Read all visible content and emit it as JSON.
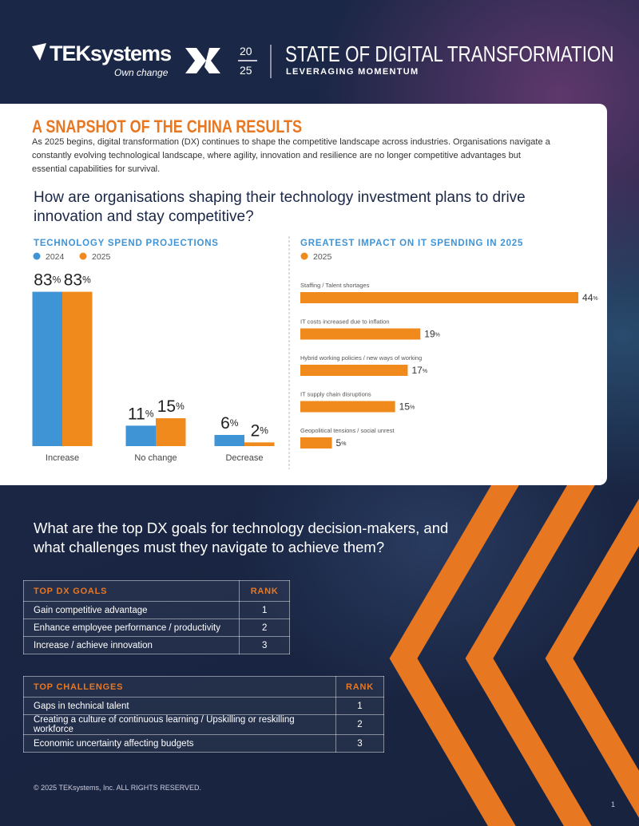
{
  "header": {
    "logo": "TEKsystems",
    "tagline": "Own change",
    "dx": "DX",
    "year_top": "20",
    "year_bottom": "25",
    "title": "STATE OF DIGITAL TRANSFORMATION",
    "subtitle": "LEVERAGING MOMENTUM"
  },
  "snapshot": {
    "title": "A SNAPSHOT OF THE CHINA RESULTS",
    "body": "As 2025 begins, digital transformation (DX) continues to shape the competitive landscape across industries. Organisations navigate a constantly evolving technological landscape, where agility, innovation and resilience are no longer competitive advantages but essential capabilities for survival.",
    "question": "How are organisations shaping their technology investment plans to drive innovation and stay competitive?"
  },
  "chart_data": [
    {
      "type": "bar",
      "title": "TECHNOLOGY SPEND PROJECTIONS",
      "categories": [
        "Increase",
        "No change",
        "Decrease"
      ],
      "series": [
        {
          "name": "2024",
          "color": "#3f94d6",
          "values": [
            83,
            11,
            6
          ],
          "value_labels": [
            "83%",
            "11%",
            "6%"
          ]
        },
        {
          "name": "2025",
          "color": "#f08a1c",
          "values": [
            83,
            15,
            2
          ],
          "value_labels": [
            "83%",
            "15%",
            "2%"
          ]
        }
      ]
    },
    {
      "type": "barh",
      "title": "GREATEST IMPACT ON IT SPENDING IN 2025",
      "categories": [
        "Staffing / Talent shortages",
        "IT costs increased due to inflation",
        "Hybrid working policies / new ways of working",
        "IT supply chain disruptions",
        "Geopolitical tensions / social unrest"
      ],
      "series": [
        {
          "name": "2025",
          "color": "#f08a1c",
          "values": [
            44,
            19,
            17,
            15,
            5
          ],
          "value_labels": [
            "44%",
            "19%",
            "17%",
            "15%",
            "5%"
          ]
        }
      ]
    }
  ],
  "goals": {
    "question": "What are the top DX goals for technology decision-makers, and what challenges must they navigate to achieve them?",
    "goals_table": {
      "header": [
        "TOP DX GOALS",
        "RANK"
      ],
      "rows": [
        [
          "Gain competitive advantage",
          1
        ],
        [
          "Enhance employee performance / productivity",
          2
        ],
        [
          "Increase / achieve innovation",
          3
        ]
      ]
    },
    "challenges_table": {
      "header": [
        "TOP CHALLENGES",
        "RANK"
      ],
      "rows": [
        [
          "Gaps in technical talent",
          1
        ],
        [
          "Creating a culture of continuous learning / Upskilling or reskilling workforce",
          2
        ],
        [
          "Economic uncertainty affecting budgets",
          3
        ]
      ]
    }
  },
  "footer": {
    "copyright": "© 2025 TEKsystems, Inc. ALL RIGHTS RESERVED.",
    "page": 1
  }
}
